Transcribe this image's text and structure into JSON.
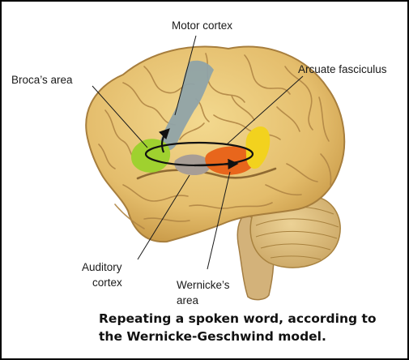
{
  "labels": {
    "motor_cortex": "Motor cortex",
    "brocas_area": "Broca’s area",
    "arcuate_fasciculus": "Arcuate fasciculus",
    "auditory_cortex": [
      "Auditory",
      "cortex"
    ],
    "wernickes_area": [
      "Wernicke’s",
      "area"
    ]
  },
  "caption": {
    "line1": "Repeating a spoken word, according to",
    "line2": "the Wernicke-Geschwind model."
  },
  "colors": {
    "brain": "#e8c476",
    "brain_dark": "#b8893a",
    "cerebellum": "#dcbd7a",
    "brainstem": "#d3b27a",
    "motor_cortex": "#8fa3a8",
    "brocas_area": "#9fd12f",
    "auditory_cortex": "#a79d96",
    "wernickes_area": "#e8661c",
    "arcuate_region": "#f2d21e"
  }
}
